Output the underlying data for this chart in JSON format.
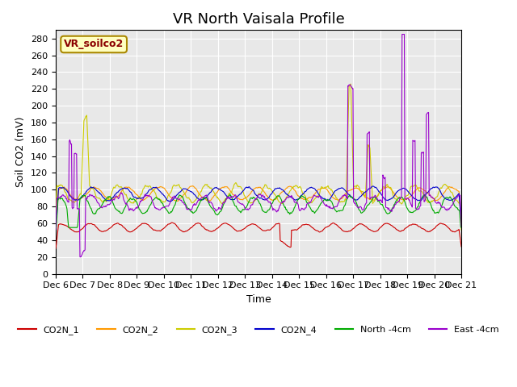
{
  "title": "VR North Vaisala Profile",
  "xlabel": "Time",
  "ylabel": "Soil CO2 (mV)",
  "annotation": "VR_soilco2",
  "ylim": [
    0,
    290
  ],
  "yticks": [
    0,
    20,
    40,
    60,
    80,
    100,
    120,
    140,
    160,
    180,
    200,
    220,
    240,
    260,
    280
  ],
  "x_tick_positions": [
    0,
    1,
    2,
    3,
    4,
    5,
    6,
    7,
    8,
    9,
    10,
    11,
    12,
    13,
    14,
    15
  ],
  "x_labels": [
    "Dec 6",
    "Dec 7",
    "Dec 8",
    "Dec 9",
    "Dec 10",
    "Dec 11",
    "Dec 12",
    "Dec 13",
    "Dec 14",
    "Dec 15",
    "Dec 16",
    "Dec 17",
    "Dec 18",
    "Dec 19",
    "Dec 20",
    "Dec 21"
  ],
  "colors": {
    "CO2N_1": "#cc0000",
    "CO2N_2": "#ff9900",
    "CO2N_3": "#cccc00",
    "CO2N_4": "#0000cc",
    "North_4cm": "#00aa00",
    "East_4cm": "#9900cc"
  },
  "background_color": "#e8e8e8",
  "title_fontsize": 13,
  "legend_labels": [
    "CO2N_1",
    "CO2N_2",
    "CO2N_3",
    "CO2N_4",
    "North -4cm",
    "East -4cm"
  ]
}
